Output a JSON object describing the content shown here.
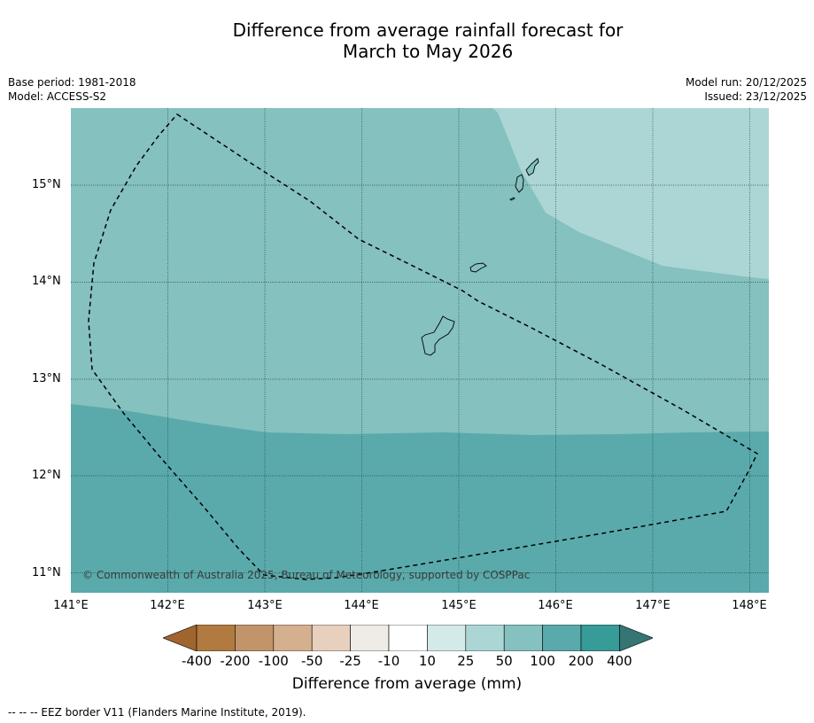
{
  "title": {
    "line1": "Difference from average rainfall forecast for",
    "line2": "March to May 2026"
  },
  "meta": {
    "base_period": "Base period: 1981-2018",
    "model": "Model: ACCESS-S2",
    "model_run": "Model run: 20/12/2025",
    "issued": "Issued: 23/12/2025"
  },
  "map": {
    "lat_labels": [
      "15°N",
      "14°N",
      "13°N",
      "12°N",
      "11°N"
    ],
    "lon_labels": [
      "141°E",
      "142°E",
      "143°E",
      "144°E",
      "145°E",
      "146°E",
      "147°E",
      "148°E"
    ],
    "copyright": "© Commonwealth of Australia 2025, Bureau of Meteorology, supported by COSPPac",
    "colors": {
      "band_10_25": "#d4eae8",
      "band_25_50": "#acd6d5",
      "band_50_100": "#84c1bf",
      "band_100_200": "#5aaaab",
      "grid": "#1f3f3f",
      "eez_border": "#000000"
    }
  },
  "colorbar": {
    "ticks": [
      "-400",
      "-200",
      "-100",
      "-50",
      "-25",
      "-10",
      "10",
      "25",
      "50",
      "100",
      "200",
      "400"
    ],
    "colors": [
      "#a0652f",
      "#b07a40",
      "#c19469",
      "#d4b08f",
      "#e7d1be",
      "#efebe7",
      "#ffffff",
      "#d4eae8",
      "#acd6d5",
      "#84c1bf",
      "#5aaaab",
      "#379b98",
      "#357574"
    ],
    "label": "Difference from average (mm)"
  },
  "legend_note": "--  --  -- EEZ border V11 (Flanders Marine Institute, 2019)."
}
